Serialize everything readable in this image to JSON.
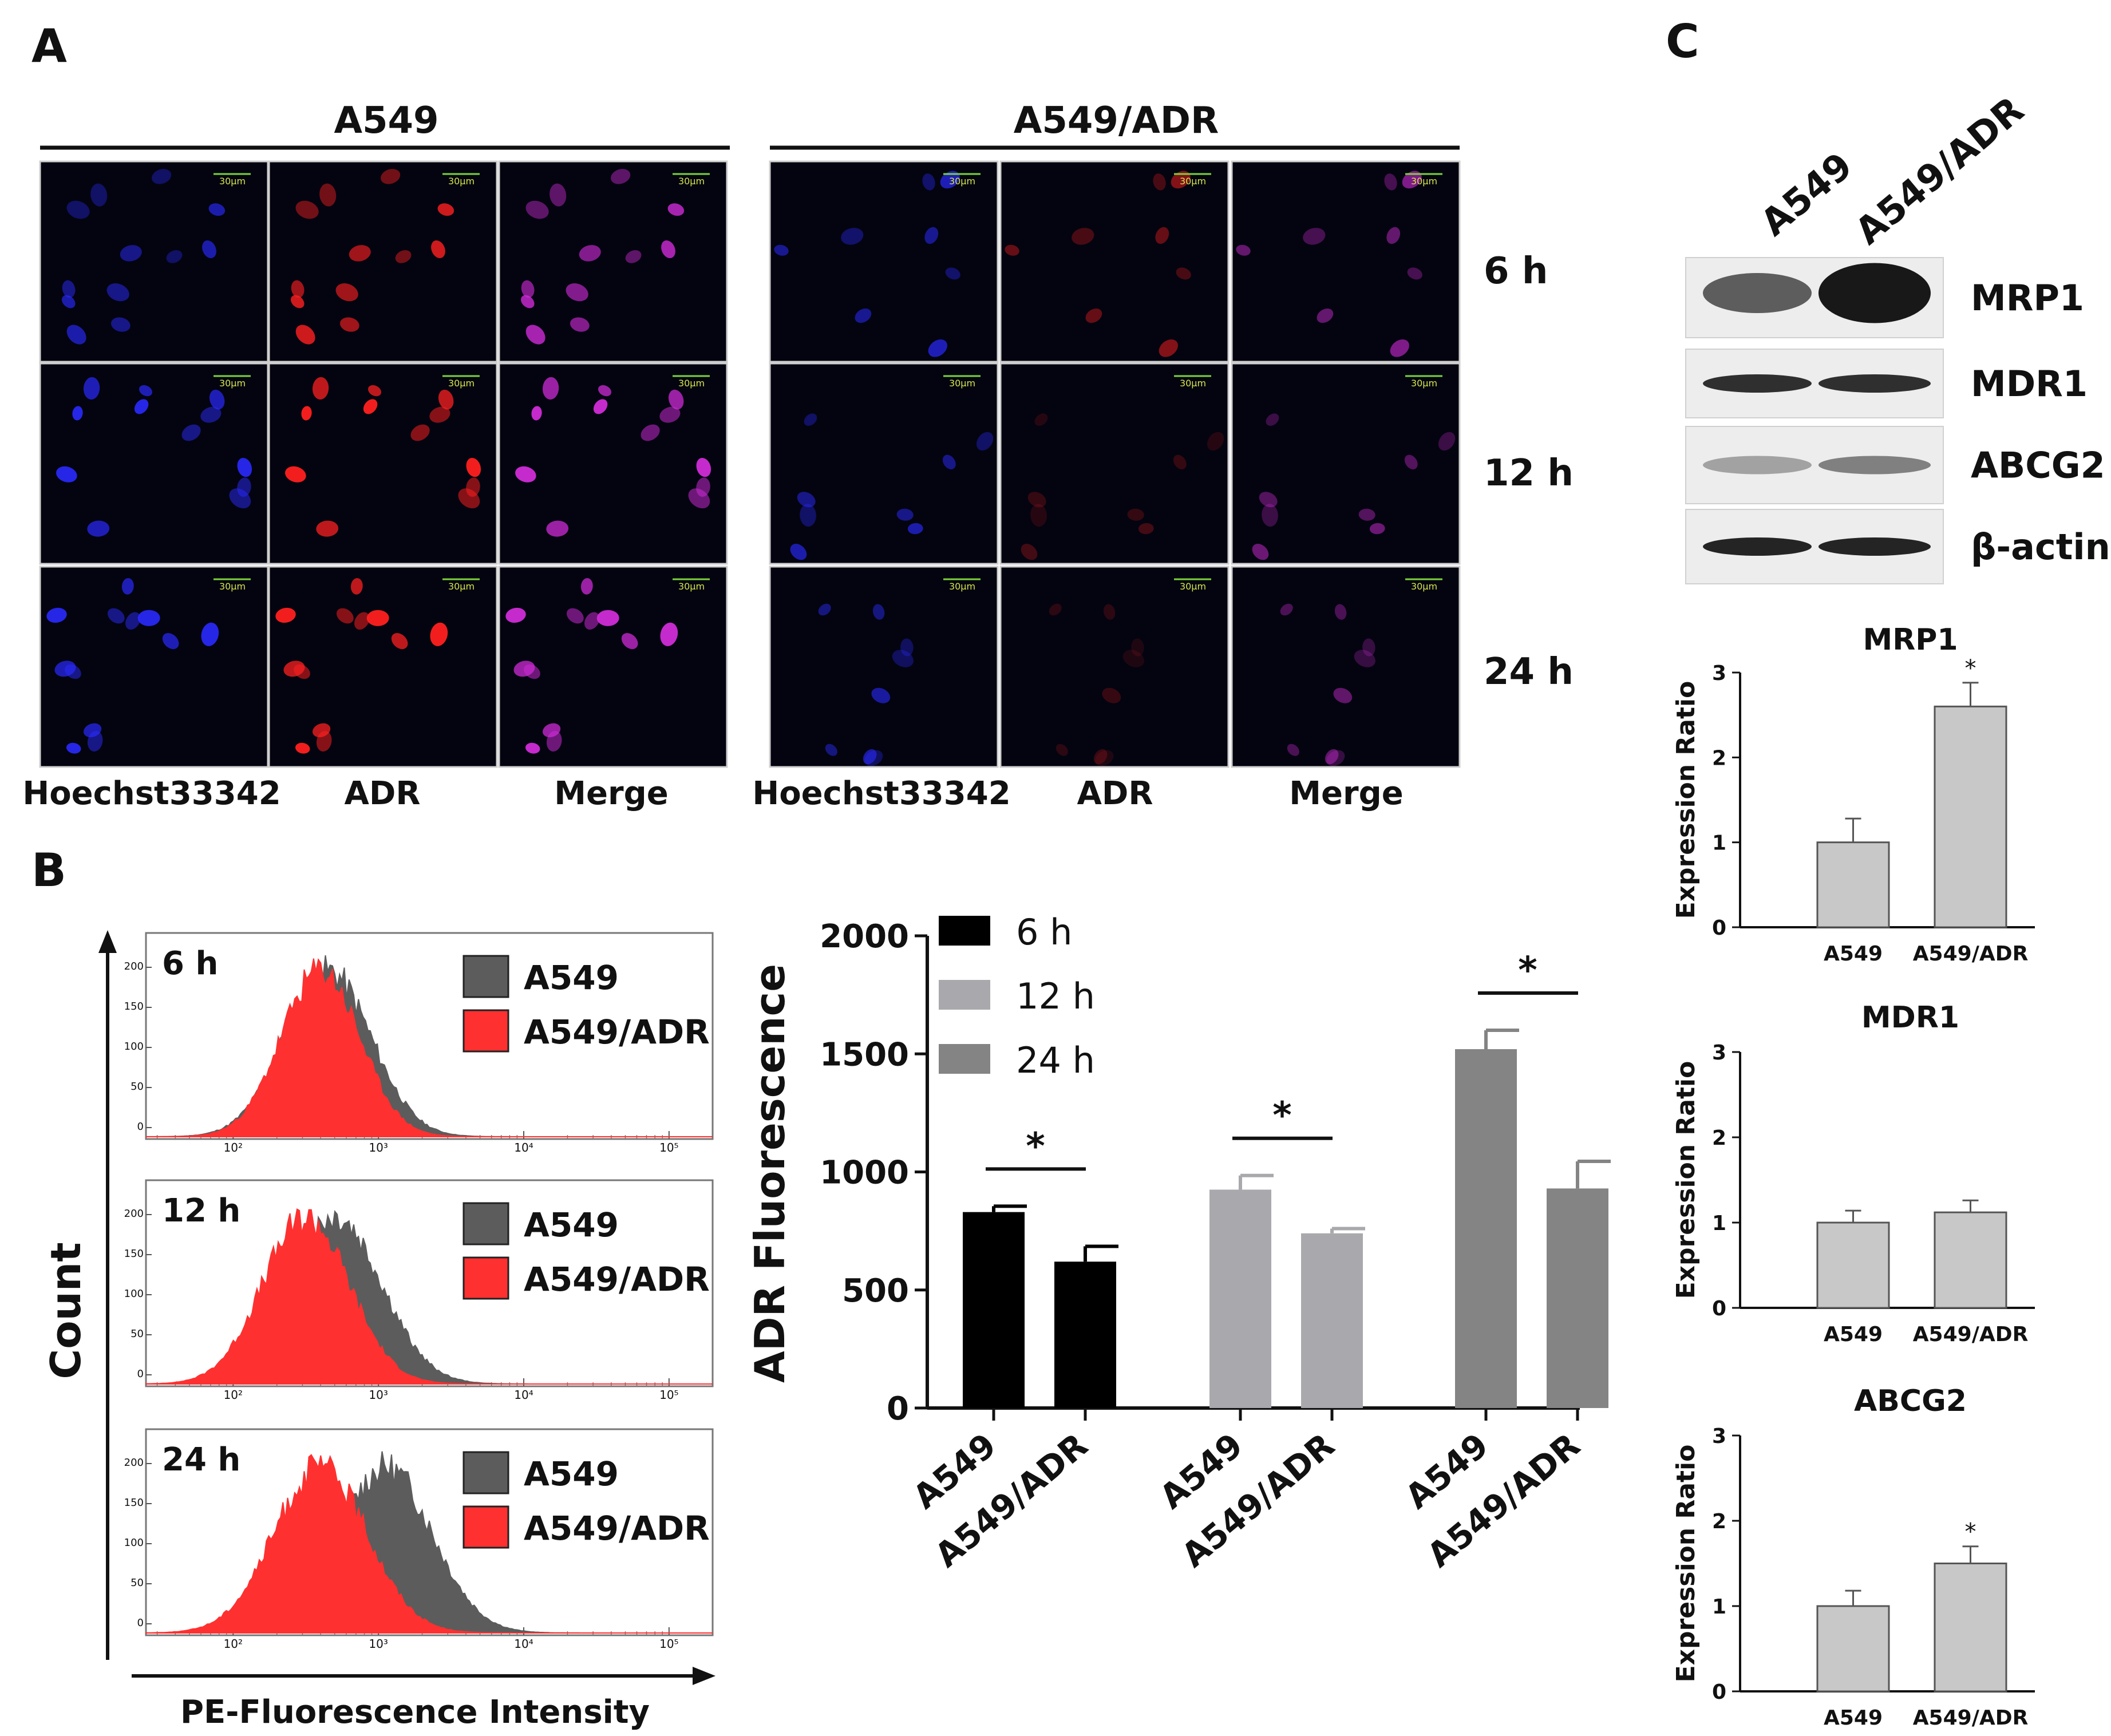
{
  "panels": {
    "a": "A",
    "b": "B",
    "c": "C"
  },
  "panel_a": {
    "groups": [
      {
        "title": "A549",
        "columns": [
          "Hoechst33342",
          "ADR",
          "Merge"
        ]
      },
      {
        "title": "A549/ADR",
        "columns": [
          "Hoechst33342",
          "ADR",
          "Merge"
        ]
      }
    ],
    "time_labels": [
      "6 h",
      "12 h",
      "24 h"
    ],
    "scale_bar": "30μm",
    "channel_colors": {
      "hoechst": "#2a2aff",
      "adr": "#ff2020",
      "merge": "#d02cd8"
    },
    "nuclei_intensity": {
      "A549": {
        "hoechst": [
          0.65,
          0.9,
          0.9
        ],
        "adr": [
          0.8,
          0.95,
          0.95
        ],
        "merge": [
          0.8,
          0.95,
          0.95
        ]
      },
      "A549/ADR": {
        "hoechst": [
          0.7,
          0.65,
          0.6
        ],
        "adr": [
          0.5,
          0.25,
          0.2
        ],
        "merge": [
          0.6,
          0.5,
          0.45
        ]
      }
    }
  },
  "histograms": {
    "axis_y": "Count",
    "axis_x": "PE-Fluorescence Intensity",
    "y_ticks": [
      "0",
      "50",
      "100",
      "150",
      "200"
    ],
    "x_ticks": [
      "10²",
      "10³",
      "10⁴",
      "10⁵"
    ],
    "legend": [
      {
        "label": "A549",
        "color": "#5c5c5c"
      },
      {
        "label": "A549/ADR",
        "color": "#ff3030"
      }
    ],
    "panels": [
      {
        "time": "6 h",
        "A549_peak_log": 2.65,
        "A549_width": 0.42,
        "ADR_peak_log": 2.6,
        "ADR_width": 0.38
      },
      {
        "time": "12 h",
        "A549_peak_log": 2.7,
        "A549_width": 0.45,
        "ADR_peak_log": 2.5,
        "ADR_width": 0.42
      },
      {
        "time": "24 h",
        "A549_peak_log": 3.05,
        "A549_width": 0.45,
        "ADR_peak_log": 2.6,
        "ADR_width": 0.45
      }
    ]
  },
  "chart_data": [
    {
      "type": "bar",
      "ylabel": "ADR Fluorescence",
      "ylim": [
        0,
        2000
      ],
      "y_ticks": [
        0,
        500,
        1000,
        1500,
        2000
      ],
      "legend_placement": "top-left",
      "series": [
        {
          "name": "6 h",
          "color": "#000000",
          "categories": [
            "A549",
            "A549/ADR"
          ],
          "values": [
            830,
            620
          ],
          "errors": [
            25,
            65
          ]
        },
        {
          "name": "12 h",
          "color": "#a9a9ad",
          "categories": [
            "A549",
            "A549/ADR"
          ],
          "values": [
            925,
            740
          ],
          "errors": [
            60,
            20
          ]
        },
        {
          "name": "24 h",
          "color": "#848484",
          "categories": [
            "A549",
            "A549/ADR"
          ],
          "values": [
            1520,
            930
          ],
          "errors": [
            80,
            115
          ]
        }
      ],
      "significance": [
        "*",
        "*",
        "*"
      ]
    },
    {
      "type": "bar",
      "title": "MRP1",
      "ylabel": "Expression Ratio",
      "ylim": [
        0,
        3
      ],
      "categories": [
        "A549",
        "A549/ADR"
      ],
      "values": [
        1.0,
        2.6
      ],
      "errors": [
        0.28,
        0.28
      ],
      "annotations": [
        "",
        "*"
      ]
    },
    {
      "type": "bar",
      "title": "MDR1",
      "ylabel": "Expression Ratio",
      "ylim": [
        0,
        3
      ],
      "categories": [
        "A549",
        "A549/ADR"
      ],
      "values": [
        1.0,
        1.12
      ],
      "errors": [
        0.14,
        0.14
      ],
      "annotations": [
        "",
        ""
      ]
    },
    {
      "type": "bar",
      "title": "ABCG2",
      "ylabel": "Expression Ratio",
      "ylim": [
        0,
        3
      ],
      "categories": [
        "A549",
        "A549/ADR"
      ],
      "values": [
        1.0,
        1.5
      ],
      "errors": [
        0.18,
        0.2
      ],
      "annotations": [
        "",
        "*"
      ]
    }
  ],
  "western": {
    "lanes": [
      "A549",
      "A549/ADR"
    ],
    "bands": [
      {
        "label": "MRP1",
        "intensity": [
          0.7,
          1.0
        ]
      },
      {
        "label": "MDR1",
        "intensity": [
          0.9,
          0.9
        ]
      },
      {
        "label": "ABCG2",
        "intensity": [
          0.4,
          0.55
        ]
      },
      {
        "label": "β-actin",
        "intensity": [
          0.95,
          0.95
        ]
      }
    ]
  }
}
